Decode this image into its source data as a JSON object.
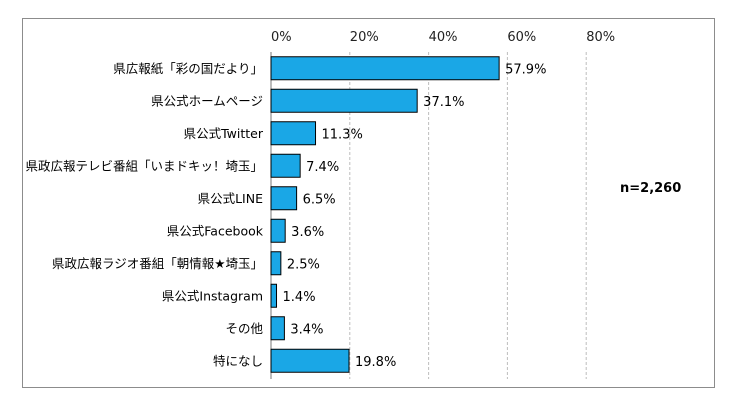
{
  "chart_data": {
    "type": "bar",
    "orientation": "horizontal",
    "categories": [
      "県広報紙「彩の国だより」",
      "県公式ホームページ",
      "県公式Twitter",
      "県政広報テレビ番組「いまドキッ！埼玉」",
      "県公式LINE",
      "県公式Facebook",
      "県政広報ラジオ番組「朝情報★埼玉」",
      "県公式Instagram",
      "その他",
      "特になし"
    ],
    "values": [
      57.9,
      37.1,
      11.3,
      7.4,
      6.5,
      3.6,
      2.5,
      1.4,
      3.4,
      19.8
    ],
    "value_labels": [
      "57.9%",
      "37.1%",
      "11.3%",
      "7.4%",
      "6.5%",
      "3.6%",
      "2.5%",
      "1.4%",
      "3.4%",
      "19.8%"
    ],
    "xlim": [
      0,
      80
    ],
    "x_ticks": [
      0,
      20,
      40,
      60,
      80
    ],
    "x_tick_labels": [
      "0%",
      "20%",
      "40%",
      "60%",
      "80%"
    ],
    "grid": true,
    "bar_color": "#1aa7e6",
    "bar_edge_color": "#000000",
    "annotation": "n=2,260"
  }
}
